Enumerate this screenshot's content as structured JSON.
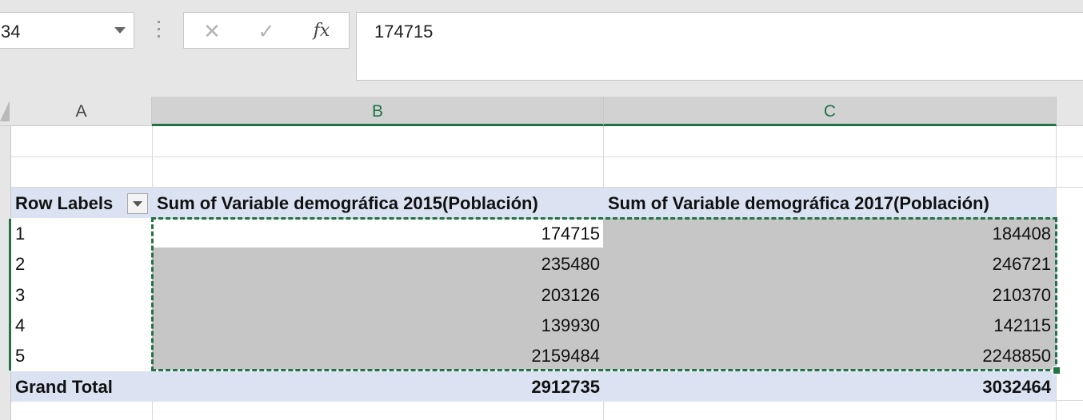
{
  "formula_bar": {
    "name_box": "34",
    "cancel_icon": "✕",
    "enter_icon": "✓",
    "fx_label": "fx",
    "formula": "174715"
  },
  "columns": [
    "A",
    "B",
    "C"
  ],
  "pivot": {
    "headers": {
      "row_labels": "Row Labels",
      "col_b": "Sum of Variable demográfica 2015(Población)",
      "col_c": "Sum of Variable demográfica 2017(Población)"
    },
    "rows": [
      {
        "label": "1",
        "v2015": "174715",
        "v2017": "184408"
      },
      {
        "label": "2",
        "v2015": "235480",
        "v2017": "246721"
      },
      {
        "label": "3",
        "v2015": "203126",
        "v2017": "210370"
      },
      {
        "label": "4",
        "v2015": "139930",
        "v2017": "142115"
      },
      {
        "label": "5",
        "v2015": "2159484",
        "v2017": "2248850"
      }
    ],
    "total": {
      "label": "Grand Total",
      "v2015": "2912735",
      "v2017": "3032464"
    }
  },
  "colors": {
    "accent": "#217346",
    "pivot_header": "#dbe3f2",
    "selection": "#c6c6c6"
  }
}
